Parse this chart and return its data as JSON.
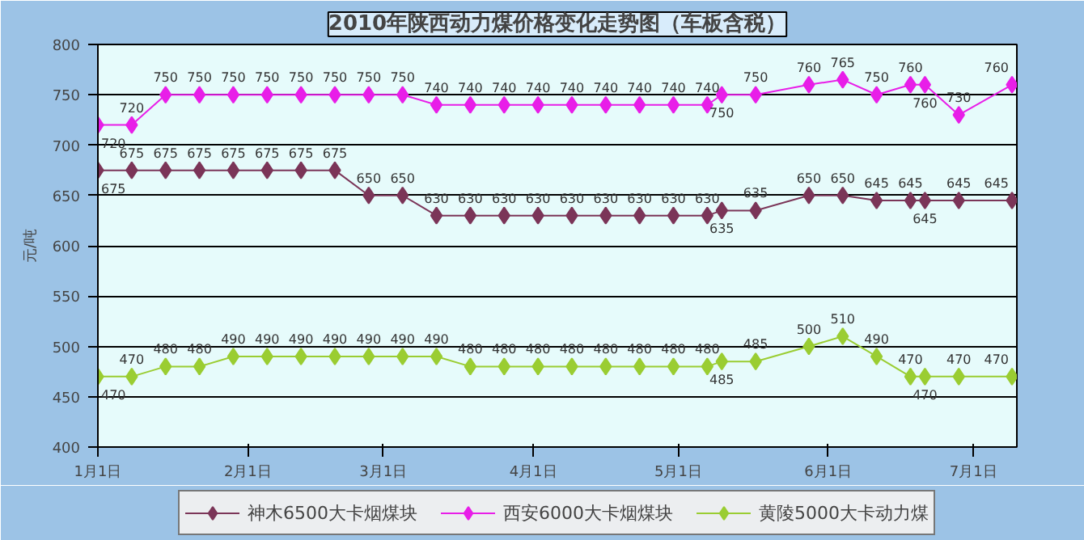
{
  "chart_data": {
    "type": "line",
    "title": "2010年陕西动力煤价格变化走势图（车板含税）",
    "ylabel": "元/吨",
    "x": [
      "2010-01-01",
      "2010-01-08",
      "2010-01-15",
      "2010-01-22",
      "2010-01-29",
      "2010-02-05",
      "2010-02-12",
      "2010-02-19",
      "2010-02-26",
      "2010-03-05",
      "2010-03-12",
      "2010-03-19",
      "2010-03-26",
      "2010-04-02",
      "2010-04-09",
      "2010-04-16",
      "2010-04-23",
      "2010-04-30",
      "2010-05-07",
      "2010-05-10",
      "2010-05-17",
      "2010-05-28",
      "2010-06-04",
      "2010-06-11",
      "2010-06-18",
      "2010-06-21",
      "2010-06-28",
      "2010-07-09"
    ],
    "series": [
      {
        "name": "神木6500大卡烟煤块",
        "color": "#7b3558",
        "values": [
          675,
          675,
          675,
          675,
          675,
          675,
          675,
          675,
          650,
          650,
          630,
          630,
          630,
          630,
          630,
          630,
          630,
          630,
          630,
          635,
          635,
          650,
          650,
          645,
          645,
          645,
          645,
          645
        ]
      },
      {
        "name": "西安6000大卡烟煤块",
        "color": "#e81ee8",
        "values": [
          720,
          720,
          750,
          750,
          750,
          750,
          750,
          750,
          750,
          750,
          740,
          740,
          740,
          740,
          740,
          740,
          740,
          740,
          740,
          750,
          750,
          760,
          765,
          750,
          760,
          760,
          730,
          760
        ]
      },
      {
        "name": "黄陵5000大卡动力煤",
        "color": "#9acd32",
        "values": [
          470,
          470,
          480,
          480,
          490,
          490,
          490,
          490,
          490,
          490,
          490,
          480,
          480,
          480,
          480,
          480,
          480,
          480,
          480,
          485,
          485,
          500,
          510,
          490,
          470,
          470,
          470,
          470
        ]
      }
    ],
    "xlim": [
      "2010-01-01",
      "2010-07-10"
    ],
    "xticks": [
      {
        "value": "2010-01-01",
        "label": "1月1日"
      },
      {
        "value": "2010-02-01",
        "label": "2月1日"
      },
      {
        "value": "2010-03-01",
        "label": "3月1日"
      },
      {
        "value": "2010-04-01",
        "label": "4月1日"
      },
      {
        "value": "2010-05-01",
        "label": "5月1日"
      },
      {
        "value": "2010-06-01",
        "label": "6月1日"
      },
      {
        "value": "2010-07-01",
        "label": "7月1日"
      }
    ],
    "ylim": [
      400,
      800
    ],
    "yticks": [
      400,
      450,
      500,
      550,
      600,
      650,
      700,
      750,
      800
    ],
    "grid": "y",
    "legend": "bottom",
    "marker": "diamond",
    "line_style": "solid",
    "data_labels": true
  }
}
